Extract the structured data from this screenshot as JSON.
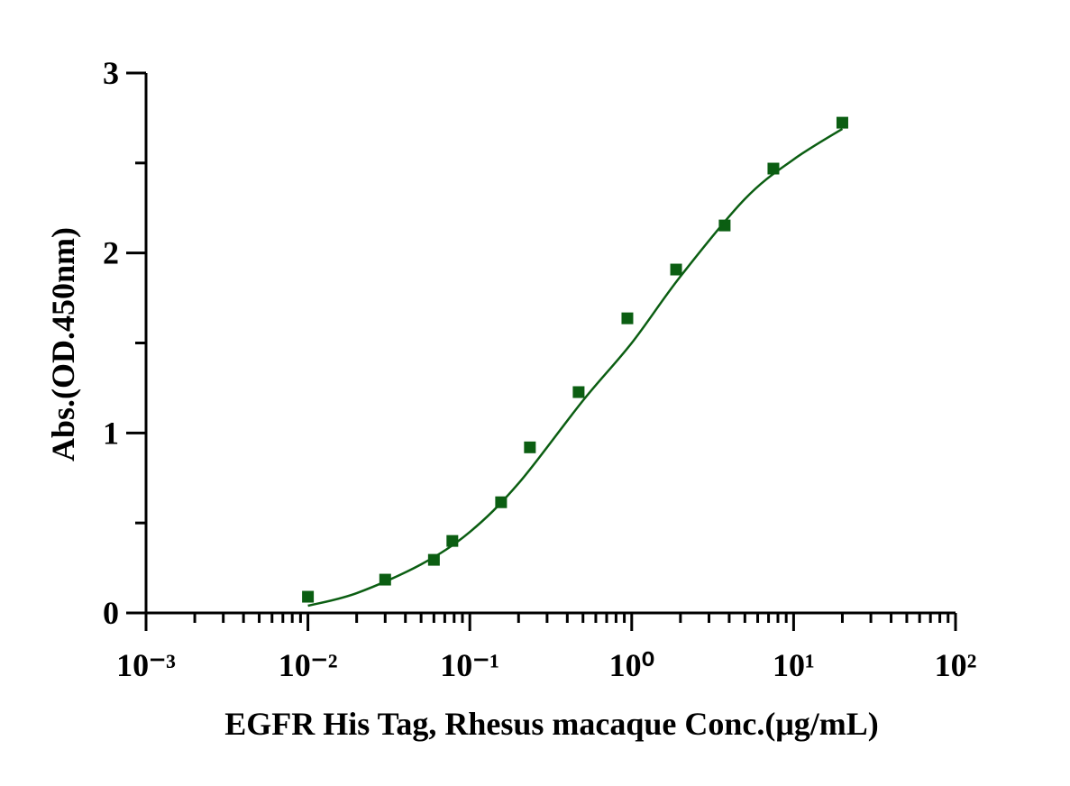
{
  "chart_data": {
    "type": "scatter",
    "x_label": "EGFR His Tag, Rhesus macaque Conc.(μg/mL)",
    "y_label": "Abs.(OD.450nm)",
    "xscale": "log",
    "xlim": [
      0.001,
      100
    ],
    "xticks": [
      {
        "value": 0.001,
        "label": "10⁻³"
      },
      {
        "value": 0.01,
        "label": "10⁻²"
      },
      {
        "value": 0.1,
        "label": "10⁻¹"
      },
      {
        "value": 1,
        "label": "10⁰"
      },
      {
        "value": 10,
        "label": "10¹"
      },
      {
        "value": 100,
        "label": "10²"
      }
    ],
    "ylim": [
      0,
      3
    ],
    "yticks": [
      0,
      1,
      2,
      3
    ],
    "yminorticks": [
      0.5,
      1.5,
      2.5
    ],
    "series": [
      {
        "kind": "points",
        "color": "#0b5e12",
        "x": [
          0.01,
          0.03,
          0.06,
          0.078,
          0.156,
          0.235,
          0.47,
          0.94,
          1.88,
          3.75,
          7.5,
          20
        ],
        "values": [
          0.09,
          0.185,
          0.295,
          0.4,
          0.615,
          0.92,
          1.227,
          1.637,
          1.908,
          2.153,
          2.469,
          2.724
        ]
      },
      {
        "kind": "curve",
        "color": "#0b5e12",
        "x": [
          0.01,
          0.02,
          0.05,
          0.1,
          0.2,
          0.5,
          1,
          2,
          5,
          10,
          20
        ],
        "values": [
          0.04,
          0.11,
          0.27,
          0.45,
          0.72,
          1.18,
          1.5,
          1.87,
          2.3,
          2.52,
          2.69
        ]
      }
    ]
  }
}
